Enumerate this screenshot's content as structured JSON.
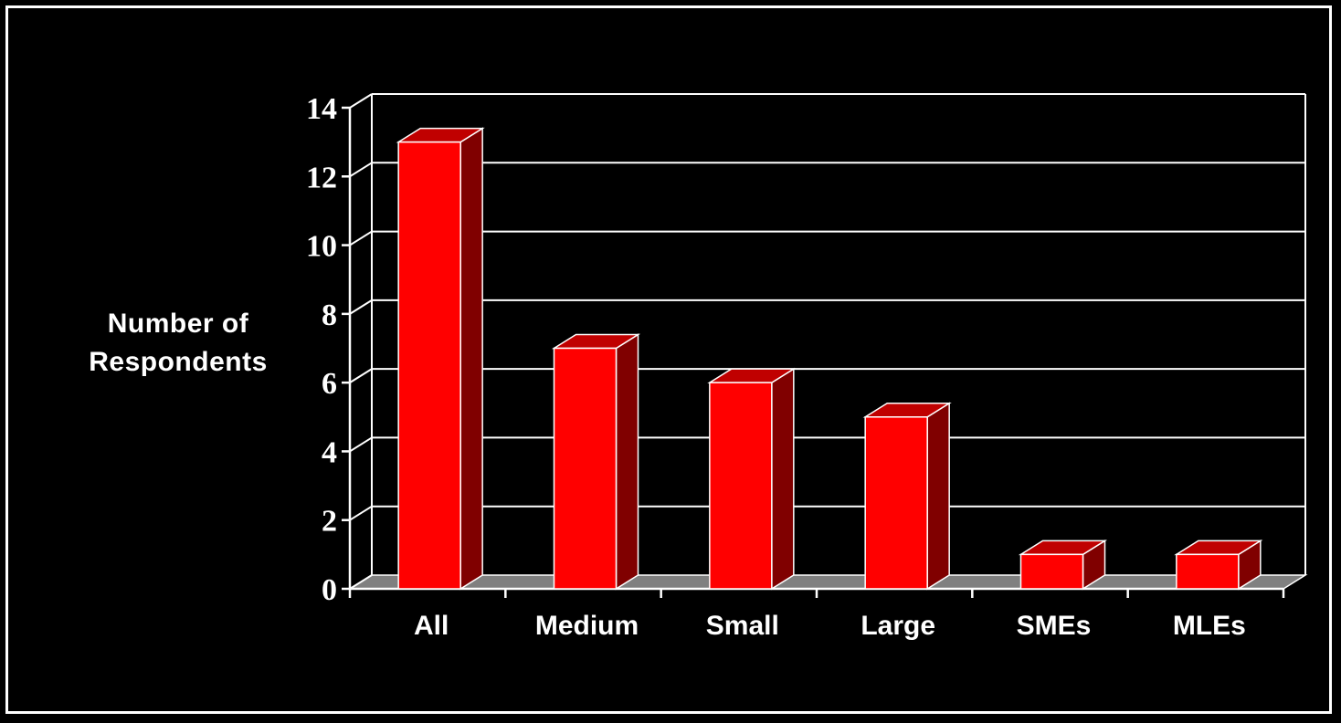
{
  "chart_data": {
    "type": "bar",
    "style": "3d-column",
    "categories": [
      "All",
      "Medium",
      "Small",
      "Large",
      "SMEs",
      "MLEs"
    ],
    "values": [
      13,
      7,
      6,
      5,
      1,
      1
    ],
    "ylabel_lines": [
      "Number of",
      "Respondents"
    ],
    "ylim": [
      0,
      14
    ],
    "yticks": [
      "0",
      "2",
      "4",
      "6",
      "8",
      "10",
      "12",
      "14"
    ],
    "grid": true,
    "legend": "none",
    "colors": {
      "bar_front": "#ff0000",
      "bar_side": "#800000",
      "bar_top": "#c00000",
      "floor": "#808080",
      "grid": "#ffffff",
      "background": "#000000"
    }
  }
}
